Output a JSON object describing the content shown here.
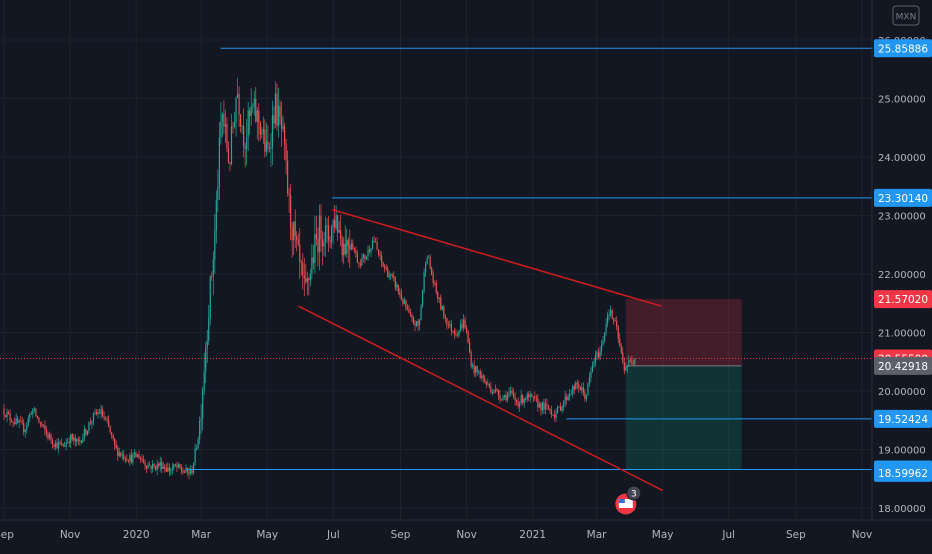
{
  "symbol_badge": "MXN",
  "chart_data": {
    "type": "candlestick",
    "title": "",
    "x_tick_labels": [
      "Sep",
      "Nov",
      "2020",
      "Mar",
      "May",
      "Jul",
      "Sep",
      "Nov",
      "2021",
      "Mar",
      "May",
      "Jul",
      "Sep",
      "Nov"
    ],
    "y_tick_labels": [
      "18.00000",
      "19.00000",
      "20.00000",
      "21.00000",
      "22.00000",
      "23.00000",
      "24.00000",
      "25.00000",
      "26.00000"
    ],
    "ylim": [
      17.8,
      26.4
    ],
    "grid": true,
    "current_price": 20.555,
    "price_path": [
      [
        "2019-08-30",
        19.7
      ],
      [
        "2019-09-06",
        19.55
      ],
      [
        "2019-09-13",
        19.45
      ],
      [
        "2019-09-20",
        19.35
      ],
      [
        "2019-09-27",
        19.7
      ],
      [
        "2019-10-04",
        19.45
      ],
      [
        "2019-10-11",
        19.25
      ],
      [
        "2019-10-18",
        19.1
      ],
      [
        "2019-10-25",
        19.05
      ],
      [
        "2019-11-01",
        19.2
      ],
      [
        "2019-11-08",
        19.1
      ],
      [
        "2019-11-15",
        19.3
      ],
      [
        "2019-11-22",
        19.55
      ],
      [
        "2019-11-29",
        19.65
      ],
      [
        "2019-12-06",
        19.4
      ],
      [
        "2019-12-13",
        19.0
      ],
      [
        "2019-12-20",
        18.9
      ],
      [
        "2019-12-27",
        18.85
      ],
      [
        "2020-01-03",
        18.9
      ],
      [
        "2020-01-10",
        18.75
      ],
      [
        "2020-01-17",
        18.7
      ],
      [
        "2020-01-24",
        18.75
      ],
      [
        "2020-01-31",
        18.65
      ],
      [
        "2020-02-07",
        18.7
      ],
      [
        "2020-02-14",
        18.62
      ],
      [
        "2020-02-21",
        18.6
      ],
      [
        "2020-02-28",
        19.3
      ],
      [
        "2020-03-06",
        21.0
      ],
      [
        "2020-03-13",
        22.5
      ],
      [
        "2020-03-20",
        24.8
      ],
      [
        "2020-03-27",
        23.9
      ],
      [
        "2020-04-03",
        25.2
      ],
      [
        "2020-04-10",
        24.3
      ],
      [
        "2020-04-17",
        24.8
      ],
      [
        "2020-04-24",
        24.6
      ],
      [
        "2020-05-01",
        24.0
      ],
      [
        "2020-05-08",
        24.9
      ],
      [
        "2020-05-15",
        24.4
      ],
      [
        "2020-05-22",
        23.0
      ],
      [
        "2020-05-29",
        22.3
      ],
      [
        "2020-06-05",
        21.6
      ],
      [
        "2020-06-12",
        22.3
      ],
      [
        "2020-06-19",
        22.8
      ],
      [
        "2020-06-26",
        22.6
      ],
      [
        "2020-07-03",
        23.0
      ],
      [
        "2020-07-10",
        22.5
      ],
      [
        "2020-07-17",
        22.6
      ],
      [
        "2020-07-24",
        22.2
      ],
      [
        "2020-07-31",
        22.3
      ],
      [
        "2020-08-07",
        22.6
      ],
      [
        "2020-08-14",
        22.2
      ],
      [
        "2020-08-21",
        22.0
      ],
      [
        "2020-08-28",
        21.8
      ],
      [
        "2020-09-04",
        21.5
      ],
      [
        "2020-09-11",
        21.2
      ],
      [
        "2020-09-18",
        21.1
      ],
      [
        "2020-09-25",
        22.4
      ],
      [
        "2020-10-02",
        21.8
      ],
      [
        "2020-10-09",
        21.4
      ],
      [
        "2020-10-16",
        21.1
      ],
      [
        "2020-10-23",
        21.0
      ],
      [
        "2020-10-30",
        21.2
      ],
      [
        "2020-11-06",
        20.4
      ],
      [
        "2020-11-13",
        20.3
      ],
      [
        "2020-11-20",
        20.1
      ],
      [
        "2020-11-27",
        20.0
      ],
      [
        "2020-12-04",
        19.9
      ],
      [
        "2020-12-11",
        19.95
      ],
      [
        "2020-12-18",
        19.8
      ],
      [
        "2020-12-25",
        19.9
      ],
      [
        "2021-01-01",
        19.85
      ],
      [
        "2021-01-08",
        19.75
      ],
      [
        "2021-01-15",
        19.7
      ],
      [
        "2021-01-22",
        19.6
      ],
      [
        "2021-01-29",
        19.8
      ],
      [
        "2021-02-05",
        20.0
      ],
      [
        "2021-02-12",
        20.1
      ],
      [
        "2021-02-19",
        19.9
      ],
      [
        "2021-02-26",
        20.5
      ],
      [
        "2021-03-05",
        20.7
      ],
      [
        "2021-03-12",
        21.4
      ],
      [
        "2021-03-19",
        21.1
      ],
      [
        "2021-03-26",
        20.4
      ],
      [
        "2021-04-02",
        20.5
      ],
      [
        "2021-04-06",
        20.55
      ]
    ],
    "horizontal_levels": [
      {
        "value": 25.85886,
        "label": "25.85886",
        "start": "2020-03-19",
        "color": "#2196f3"
      },
      {
        "value": 23.3014,
        "label": "23.30140",
        "start": "2020-06-30",
        "color": "#2196f3"
      },
      {
        "value": 19.52424,
        "label": "19.52424",
        "start": "2021-02-01",
        "color": "#2196f3"
      },
      {
        "value": 18.65864,
        "label": "18.65864",
        "start": "2020-02-17",
        "color": "#2196f3"
      }
    ],
    "trendlines": [
      {
        "from": [
          "2020-06-30",
          23.1
        ],
        "to": [
          "2021-04-30",
          21.45
        ],
        "color": "#d01c1c"
      },
      {
        "from": [
          "2020-05-30",
          21.45
        ],
        "to": [
          "2021-05-01",
          18.3
        ],
        "color": "#d01c1c"
      }
    ],
    "position": {
      "start": "2021-03-28",
      "end": "2021-07-13",
      "entry": 20.42918,
      "stop": 21.5702,
      "target": 18.65864
    },
    "price_labels": [
      {
        "label": "25.85886",
        "value": 25.85886,
        "color": "#2196f3"
      },
      {
        "label": "23.30140",
        "value": 23.3014,
        "color": "#2196f3"
      },
      {
        "label": "21.57020",
        "value": 21.5702,
        "color": "#f23645"
      },
      {
        "label": "20.55500",
        "value": 20.555,
        "color": "#f23645"
      },
      {
        "label": "20.42918",
        "value": 20.42918,
        "color": "#5d606b"
      },
      {
        "label": "19.52424",
        "value": 19.52424,
        "color": "#2196f3"
      },
      {
        "label": "18.65864",
        "value": 18.65864,
        "color": "#2196f3"
      },
      {
        "label": "18.59962",
        "value": 18.59962,
        "color": "#2196f3"
      }
    ],
    "event_marker": {
      "date": "2021-03-28",
      "count": "3"
    }
  }
}
